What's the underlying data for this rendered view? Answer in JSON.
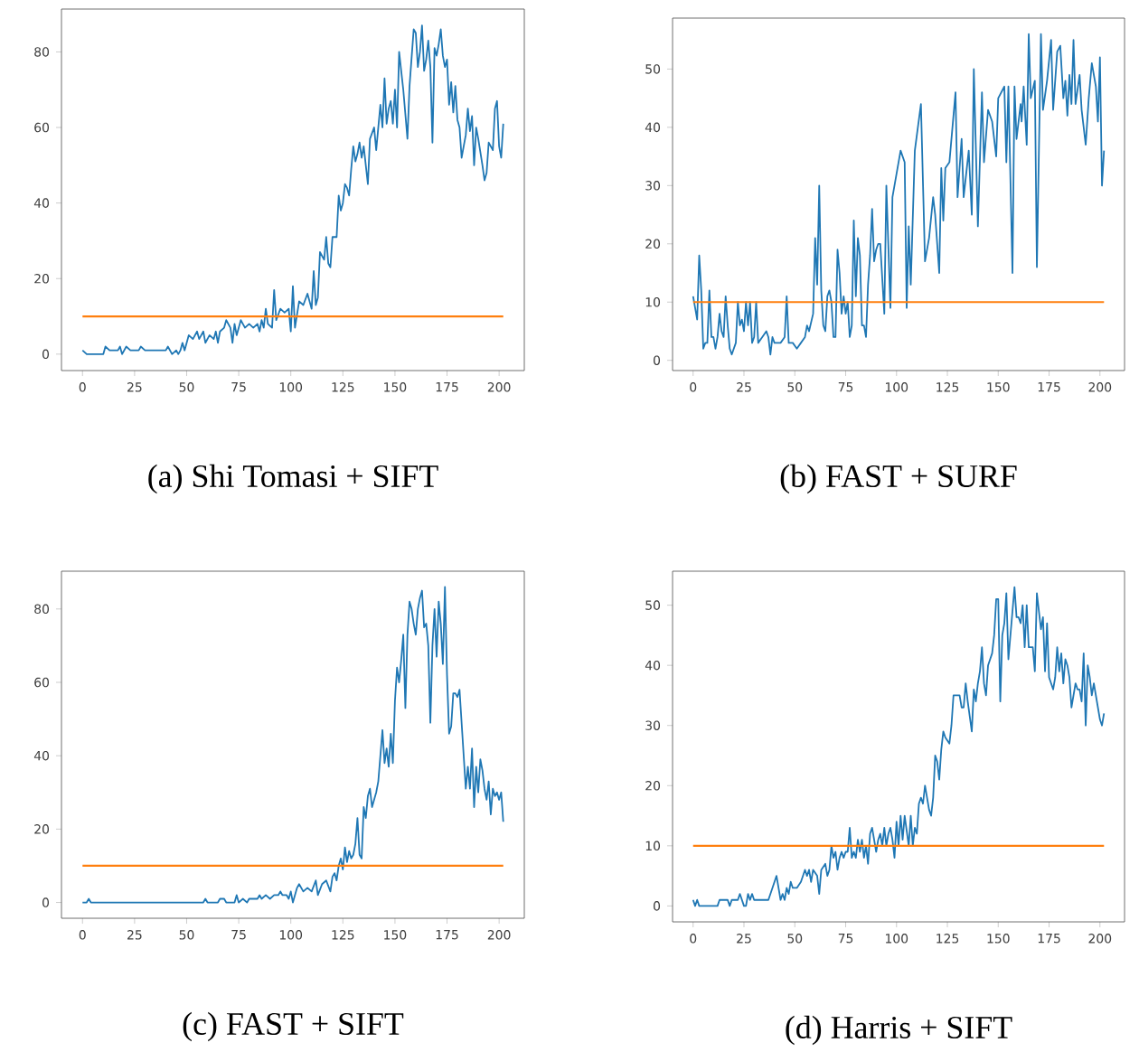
{
  "chart_data": [
    {
      "type": "line",
      "title": "(a) Shi Tomasi + SIFT",
      "xlim": [
        -10.1,
        212.1
      ],
      "ylim": [
        -4.35,
        91.35
      ],
      "xticks": [
        0,
        25,
        50,
        75,
        100,
        125,
        150,
        175,
        200
      ],
      "yticks": [
        0,
        20,
        40,
        60,
        80
      ],
      "ref_lines": [
        {
          "axis": "y",
          "value": 10,
          "color": "#ff7f0e"
        }
      ],
      "series": [
        {
          "color": "#1f77b4",
          "x": [
            0,
            2,
            10,
            11,
            13,
            17,
            18,
            19,
            21,
            23,
            27,
            28,
            30,
            40,
            41,
            43,
            45,
            46,
            47,
            48,
            49,
            51,
            53,
            55,
            56,
            58,
            59,
            61,
            63,
            64,
            65,
            66,
            68,
            69,
            71,
            72,
            73,
            74,
            76,
            78,
            80,
            82,
            84,
            85,
            86,
            87,
            88,
            89,
            91,
            92,
            93,
            95,
            97,
            99,
            100,
            101,
            102,
            104,
            106,
            108,
            110,
            111,
            112,
            113,
            114,
            116,
            117,
            118,
            119,
            120,
            122,
            123,
            124,
            125,
            126,
            127,
            128,
            129,
            130,
            131,
            132,
            133,
            134,
            135,
            137,
            138,
            140,
            141,
            143,
            144,
            145,
            146,
            147,
            148,
            149,
            150,
            151,
            152,
            153,
            154,
            156,
            157,
            159,
            160,
            161,
            162,
            163,
            164,
            165,
            166,
            167,
            168,
            169,
            170,
            171,
            172,
            173,
            174,
            175,
            176,
            177,
            178,
            179,
            180,
            181,
            182,
            183,
            184,
            185,
            186,
            187,
            188,
            189,
            190,
            192,
            193,
            194,
            195,
            196,
            197,
            198,
            199,
            200,
            201,
            202
          ],
          "values": [
            1,
            0,
            0,
            2,
            1,
            1,
            2,
            0,
            2,
            1,
            1,
            2,
            1,
            1,
            2,
            0,
            1,
            0,
            1,
            3,
            1,
            5,
            4,
            6,
            4,
            6,
            3,
            5,
            4,
            6,
            3,
            6,
            7,
            9,
            7,
            3,
            8,
            5,
            9,
            7,
            8,
            7,
            8,
            6,
            9,
            7,
            12,
            8,
            7,
            17,
            9,
            12,
            11,
            12,
            6,
            18,
            7,
            14,
            13,
            16,
            12,
            22,
            13,
            15,
            27,
            25,
            31,
            24,
            23,
            31,
            31,
            42,
            38,
            40,
            45,
            44,
            42,
            49,
            55,
            51,
            53,
            56,
            52,
            55,
            45,
            57,
            60,
            54,
            66,
            60,
            73,
            61,
            65,
            67,
            61,
            70,
            60,
            80,
            75,
            70,
            57,
            71,
            86,
            85,
            76,
            80,
            87,
            75,
            78,
            83,
            76,
            56,
            81,
            79,
            82,
            86,
            79,
            76,
            78,
            66,
            72,
            64,
            71,
            62,
            60,
            52,
            55,
            58,
            65,
            59,
            63,
            50,
            60,
            57,
            50,
            46,
            48,
            56,
            55,
            54,
            65,
            67,
            55,
            52,
            61
          ]
        }
      ]
    },
    {
      "type": "line",
      "title": "(b) FAST + SURF",
      "xlim": [
        -10.1,
        212.1
      ],
      "ylim": [
        -1.75,
        58.75
      ],
      "xticks": [
        0,
        25,
        50,
        75,
        100,
        125,
        150,
        175,
        200
      ],
      "yticks": [
        0,
        10,
        20,
        30,
        40,
        50
      ],
      "ref_lines": [
        {
          "axis": "y",
          "value": 10,
          "color": "#ff7f0e"
        }
      ],
      "series": [
        {
          "color": "#1f77b4",
          "x": [
            0,
            1,
            2,
            3,
            4,
            5,
            6,
            7,
            8,
            9,
            10,
            11,
            12,
            13,
            14,
            15,
            16,
            17,
            18,
            19,
            21,
            22,
            23,
            24,
            25,
            26,
            27,
            28,
            29,
            30,
            31,
            32,
            34,
            36,
            37,
            38,
            39,
            40,
            43,
            45,
            46,
            47,
            49,
            51,
            53,
            55,
            56,
            57,
            59,
            60,
            61,
            62,
            63,
            64,
            65,
            66,
            67,
            68,
            69,
            70,
            71,
            72,
            73,
            74,
            75,
            76,
            77,
            78,
            79,
            80,
            81,
            82,
            83,
            84,
            85,
            86,
            87,
            88,
            89,
            90,
            91,
            92,
            94,
            95,
            97,
            98,
            102,
            104,
            105,
            106,
            107,
            109,
            112,
            114,
            116,
            118,
            119,
            121,
            122,
            123,
            124,
            126,
            129,
            130,
            132,
            133,
            135.5,
            137,
            138,
            140,
            142,
            143,
            145,
            147,
            149,
            150,
            153,
            154,
            155,
            157,
            158,
            159,
            161,
            161.5,
            162.5,
            164,
            165,
            166,
            168,
            169,
            171,
            172,
            174,
            176,
            177,
            179,
            180.5,
            182,
            183,
            184,
            185,
            186,
            187,
            188,
            190,
            191,
            193,
            194.5,
            196,
            198,
            199,
            200,
            201,
            202
          ],
          "values": [
            11,
            9,
            7,
            18,
            12,
            2,
            3,
            3,
            12,
            4,
            4,
            2,
            4,
            8,
            5,
            4,
            11,
            6,
            2,
            1,
            3,
            10,
            6,
            7,
            5,
            10,
            6,
            10,
            3,
            4,
            10,
            3,
            4,
            5,
            4,
            1,
            4,
            3,
            3,
            4,
            11,
            3,
            3,
            2,
            3,
            4,
            6,
            5,
            8,
            21,
            13,
            30,
            12,
            6,
            5,
            11,
            12,
            10,
            4,
            4,
            19,
            15,
            8,
            11,
            8,
            10,
            4,
            6,
            24,
            11,
            21,
            18,
            6,
            6,
            4,
            13,
            18,
            26,
            17,
            19,
            20,
            20,
            8,
            30,
            9,
            28,
            36,
            34,
            9,
            23,
            13,
            36,
            44,
            17,
            21,
            28,
            25,
            15,
            33,
            24,
            33,
            34,
            46,
            28,
            38,
            28,
            36,
            25,
            50,
            23,
            46,
            34,
            43,
            41,
            35,
            45,
            47,
            34,
            47,
            15,
            47,
            38,
            44,
            41,
            47,
            37,
            56,
            45,
            48,
            16,
            56,
            43,
            48,
            55,
            43,
            53,
            54,
            45,
            48,
            42,
            49,
            44,
            55,
            44,
            49,
            43,
            37,
            45,
            51,
            47,
            41,
            52,
            30,
            36
          ]
        }
      ]
    },
    {
      "type": "line",
      "title": "(c) FAST + SIFT",
      "xlim": [
        -10.1,
        212.1
      ],
      "ylim": [
        -4.3,
        90.3
      ],
      "xticks": [
        0,
        25,
        50,
        75,
        100,
        125,
        150,
        175,
        200
      ],
      "yticks": [
        0,
        20,
        40,
        60,
        80
      ],
      "ref_lines": [
        {
          "axis": "y",
          "value": 10,
          "color": "#ff7f0e"
        }
      ],
      "series": [
        {
          "color": "#1f77b4",
          "x": [
            0,
            2,
            3,
            4,
            58,
            59,
            60,
            65,
            66,
            68,
            69,
            73,
            74,
            75,
            77,
            79,
            80,
            84,
            85,
            86,
            88,
            90,
            92,
            94,
            95,
            96,
            98,
            99,
            100,
            101,
            103,
            104,
            106,
            108,
            110,
            112,
            113,
            115,
            117,
            119,
            120,
            121,
            122,
            123,
            124,
            125,
            126,
            127,
            128,
            129,
            130,
            131,
            132,
            133,
            134,
            135,
            136,
            137,
            138,
            139,
            140,
            141,
            142,
            143,
            144,
            145,
            146,
            147,
            148,
            149,
            150,
            151,
            152,
            153,
            154,
            155,
            156,
            157,
            158,
            159,
            160,
            161,
            162,
            163,
            164,
            165,
            166,
            167,
            168,
            169,
            170,
            171,
            172,
            173,
            174,
            175,
            176,
            177,
            178,
            179,
            180,
            181,
            182,
            183,
            184,
            185,
            186,
            187,
            188,
            189,
            190,
            191,
            192,
            193,
            194,
            195,
            196,
            197,
            198,
            199,
            200,
            201,
            202
          ],
          "values": [
            0,
            0,
            1,
            0,
            0,
            1,
            0,
            0,
            1,
            1,
            0,
            0,
            2,
            0,
            1,
            0,
            1,
            1,
            2,
            1,
            2,
            1,
            2,
            2,
            3,
            2,
            2,
            1,
            3,
            0,
            4,
            5,
            3,
            4,
            3,
            6,
            2,
            5,
            6,
            3,
            7,
            8,
            6,
            10,
            12,
            9,
            15,
            11,
            14,
            12,
            13,
            16,
            23,
            13,
            12,
            26,
            23,
            29,
            31,
            26,
            28,
            30,
            33,
            40,
            47,
            38,
            42,
            37,
            46,
            38,
            55,
            64,
            60,
            66,
            73,
            53,
            73,
            82,
            80,
            76,
            73,
            80,
            83,
            85,
            75,
            76,
            70,
            49,
            70,
            80,
            67,
            82,
            76,
            65,
            86,
            62,
            46,
            48,
            57,
            57,
            56,
            58,
            49,
            40,
            31,
            37,
            31,
            42,
            26,
            37,
            30,
            39,
            36,
            31,
            28,
            33,
            24,
            31,
            29,
            30,
            28,
            30,
            22
          ]
        }
      ]
    },
    {
      "type": "line",
      "title": "(d) Harris + SIFT",
      "xlim": [
        -10.1,
        212.1
      ],
      "ylim": [
        -2.65,
        55.65
      ],
      "xticks": [
        0,
        25,
        50,
        75,
        100,
        125,
        150,
        175,
        200
      ],
      "yticks": [
        0,
        10,
        20,
        30,
        40,
        50
      ],
      "ref_lines": [
        {
          "axis": "y",
          "value": 10,
          "color": "#ff7f0e"
        }
      ],
      "series": [
        {
          "color": "#1f77b4",
          "x": [
            0,
            1,
            2,
            3,
            12,
            13,
            17,
            18,
            19,
            22,
            23,
            24,
            25,
            26,
            27,
            28,
            29,
            30,
            37,
            38,
            39,
            41,
            42,
            43,
            44,
            45,
            46,
            47,
            48,
            49,
            51,
            53,
            55,
            56,
            57,
            58,
            59,
            61,
            62,
            63,
            65,
            66,
            67,
            68,
            69,
            70,
            71,
            72,
            73,
            74,
            75,
            76,
            77,
            78,
            79,
            80,
            81,
            82,
            83,
            84,
            85,
            86,
            87,
            88,
            89,
            90,
            91,
            92,
            93,
            94,
            95,
            96,
            97,
            98,
            99,
            100,
            101,
            102,
            103,
            104,
            106,
            107,
            108,
            109,
            110,
            111,
            112,
            113,
            114,
            116,
            117,
            118,
            119,
            120,
            121,
            122,
            123,
            124,
            126,
            127,
            128,
            131,
            132,
            133,
            134,
            135,
            137,
            138,
            139,
            140,
            141,
            142,
            143,
            144,
            145,
            147,
            148,
            149,
            150,
            151,
            152,
            153,
            154,
            155,
            157,
            158,
            159,
            160,
            161,
            162,
            163,
            164,
            165,
            167,
            168,
            169,
            170,
            171,
            172,
            173,
            174,
            175,
            177,
            178,
            179,
            180,
            181,
            182,
            183,
            184,
            185,
            186,
            188,
            189,
            190,
            191,
            192,
            193,
            194,
            195,
            196,
            197,
            199,
            200,
            201,
            202
          ],
          "values": [
            1,
            0,
            1,
            0,
            0,
            1,
            1,
            0,
            1,
            1,
            2,
            1,
            0,
            0,
            2,
            1,
            2,
            1,
            1,
            2,
            3,
            5,
            3,
            1,
            2,
            1,
            3,
            2,
            4,
            3,
            3,
            4,
            6,
            5,
            6,
            4,
            6,
            5,
            2,
            6,
            7,
            5,
            6,
            10,
            8,
            9,
            6,
            8,
            9,
            8,
            9,
            9,
            13,
            8,
            9,
            8,
            11,
            9,
            11,
            8,
            10,
            7,
            12,
            13,
            11,
            9,
            11,
            12,
            10,
            13,
            10,
            12,
            13,
            11,
            8,
            14,
            10,
            15,
            11,
            15,
            10,
            15,
            10,
            13,
            12,
            17,
            18,
            17,
            20,
            16,
            15,
            18,
            25,
            24,
            21,
            26,
            29,
            28,
            27,
            30,
            35,
            35,
            33,
            33,
            37,
            34,
            29,
            36,
            34,
            37,
            39,
            43,
            37,
            35,
            40,
            42,
            45,
            51,
            51,
            34,
            45,
            47,
            52,
            41,
            49,
            53,
            48,
            48,
            47,
            50,
            43,
            50,
            43,
            43,
            39,
            52,
            49,
            46,
            48,
            39,
            47,
            38,
            36,
            38,
            43,
            39,
            42,
            37,
            41,
            40,
            38,
            33,
            37,
            36,
            36,
            34,
            42,
            30,
            40,
            38,
            35,
            37,
            33,
            31,
            30,
            32
          ]
        }
      ]
    }
  ]
}
